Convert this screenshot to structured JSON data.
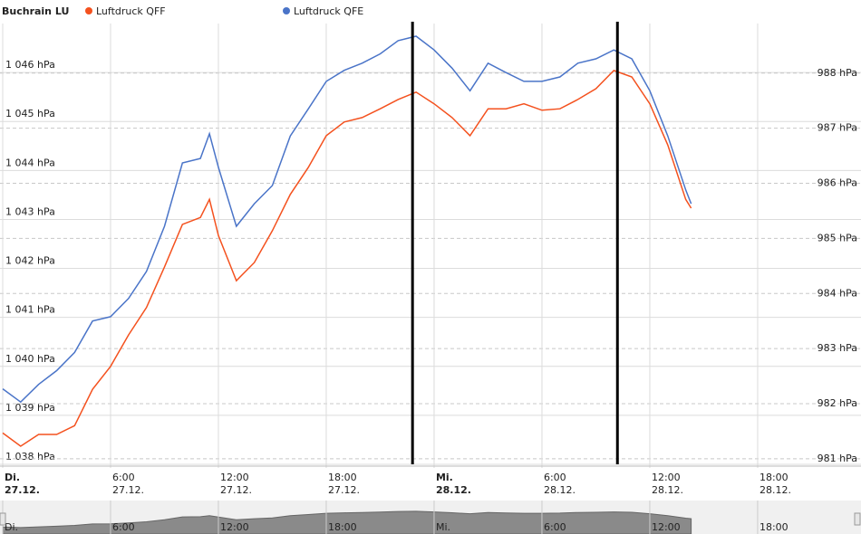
{
  "chart_data": {
    "type": "line",
    "title": "Buchrain LU",
    "x": [
      0,
      1,
      2,
      3,
      4,
      5,
      6,
      7,
      8,
      9,
      10,
      11,
      11.5,
      12,
      13,
      14,
      15,
      16,
      17,
      18,
      19,
      20,
      21,
      22,
      23,
      24,
      25,
      26,
      27,
      28,
      29,
      30,
      31,
      32,
      33,
      34,
      35,
      36,
      37,
      38,
      38.3
    ],
    "series": [
      {
        "name": "Luftdruck QFF",
        "color": "#f4511e",
        "axis": "y",
        "values": [
          1038.64,
          1038.37,
          1038.61,
          1038.61,
          1038.79,
          1039.53,
          1040.0,
          1040.64,
          1041.2,
          1042.03,
          1042.9,
          1043.04,
          1043.41,
          1042.67,
          1041.75,
          1042.12,
          1042.77,
          1043.51,
          1044.06,
          1044.71,
          1044.99,
          1045.08,
          1045.26,
          1045.45,
          1045.6,
          1045.36,
          1045.08,
          1044.71,
          1045.26,
          1045.26,
          1045.36,
          1045.23,
          1045.26,
          1045.45,
          1045.67,
          1046.04,
          1045.91,
          1045.36,
          1044.52,
          1043.41,
          1043.23
        ]
      },
      {
        "name": "Luftdruck QFE",
        "color": "#4a74c8",
        "axis": "y2",
        "values": [
          982.27,
          982.03,
          982.35,
          982.6,
          982.93,
          983.5,
          983.58,
          983.91,
          984.4,
          985.22,
          986.37,
          986.45,
          986.9,
          986.29,
          985.22,
          985.63,
          985.96,
          986.86,
          987.35,
          987.85,
          988.05,
          988.18,
          988.35,
          988.59,
          988.67,
          988.42,
          988.09,
          987.68,
          988.18,
          988.01,
          987.85,
          987.85,
          987.93,
          988.18,
          988.26,
          988.42,
          988.26,
          987.68,
          986.86,
          985.88,
          985.63
        ]
      }
    ],
    "xlim": [
      -0.15,
      47.75
    ],
    "xticks": [
      {
        "value": 0,
        "label": "Di.",
        "date": "27.12."
      },
      {
        "value": 6,
        "label": "6:00",
        "date": "27.12."
      },
      {
        "value": 12,
        "label": "12:00",
        "date": "27.12."
      },
      {
        "value": 18,
        "label": "18:00",
        "date": "27.12."
      },
      {
        "value": 24,
        "label": "Mi.",
        "date": "28.12."
      },
      {
        "value": 30,
        "label": "6:00",
        "date": "28.12."
      },
      {
        "value": 36,
        "label": "12:00",
        "date": "28.12."
      },
      {
        "value": 42,
        "label": "18:00",
        "date": "28.12."
      }
    ],
    "ylim": [
      1038,
      1047
    ],
    "yticks": [
      {
        "value": 1038,
        "label": "1 038 hPa"
      },
      {
        "value": 1039,
        "label": "1 039 hPa"
      },
      {
        "value": 1040,
        "label": "1 040 hPa"
      },
      {
        "value": 1041,
        "label": "1 041 hPa"
      },
      {
        "value": 1042,
        "label": "1 042 hPa"
      },
      {
        "value": 1043,
        "label": "1 043 hPa"
      },
      {
        "value": 1044,
        "label": "1 044 hPa"
      },
      {
        "value": 1045,
        "label": "1 045 hPa"
      },
      {
        "value": 1046,
        "label": "1 046 hPa"
      }
    ],
    "y2lim": [
      980.9,
      988.9
    ],
    "y2ticks": [
      {
        "value": 981,
        "label": "981 hPa"
      },
      {
        "value": 982,
        "label": "982 hPa"
      },
      {
        "value": 983,
        "label": "983 hPa"
      },
      {
        "value": 984,
        "label": "984 hPa"
      },
      {
        "value": 985,
        "label": "985 hPa"
      },
      {
        "value": 986,
        "label": "986 hPa"
      },
      {
        "value": 987,
        "label": "987 hPa"
      },
      {
        "value": 988,
        "label": "988 hPa"
      }
    ],
    "markers": [
      22.8,
      34.2
    ],
    "grid": true
  }
}
